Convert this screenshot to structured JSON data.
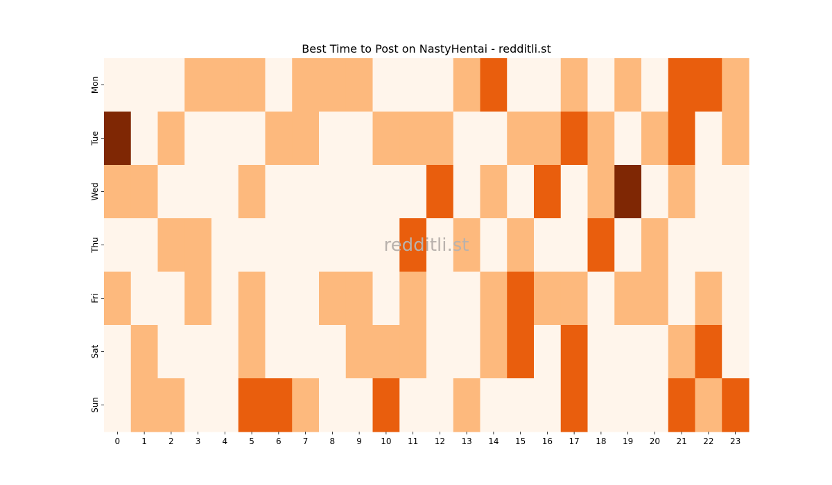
{
  "chart_data": {
    "type": "heatmap",
    "title": "Best Time to Post on NastyHentai - redditli.st",
    "watermark": "redditli.st",
    "x_categories": [
      "0",
      "1",
      "2",
      "3",
      "4",
      "5",
      "6",
      "7",
      "8",
      "9",
      "10",
      "11",
      "12",
      "13",
      "14",
      "15",
      "16",
      "17",
      "18",
      "19",
      "20",
      "21",
      "22",
      "23"
    ],
    "y_categories": [
      "Mon",
      "Tue",
      "Wed",
      "Thu",
      "Fri",
      "Sat",
      "Sun"
    ],
    "values": [
      [
        0,
        0,
        0,
        1,
        1,
        1,
        0,
        1,
        1,
        1,
        0,
        0,
        0,
        1,
        2,
        0,
        0,
        1,
        0,
        1,
        0,
        2,
        2,
        1
      ],
      [
        3,
        0,
        1,
        0,
        0,
        0,
        1,
        1,
        0,
        0,
        1,
        1,
        1,
        0,
        0,
        1,
        1,
        2,
        1,
        0,
        1,
        2,
        0,
        1
      ],
      [
        1,
        1,
        0,
        0,
        0,
        1,
        0,
        0,
        0,
        0,
        0,
        0,
        2,
        0,
        1,
        0,
        2,
        0,
        1,
        3,
        0,
        1,
        0,
        0
      ],
      [
        0,
        0,
        1,
        1,
        0,
        0,
        0,
        0,
        0,
        0,
        0,
        2,
        0,
        1,
        0,
        1,
        0,
        0,
        2,
        0,
        1,
        0,
        0,
        0
      ],
      [
        1,
        0,
        0,
        1,
        0,
        1,
        0,
        0,
        1,
        1,
        0,
        1,
        0,
        0,
        1,
        2,
        1,
        1,
        0,
        1,
        1,
        0,
        1,
        0
      ],
      [
        0,
        1,
        0,
        0,
        0,
        1,
        0,
        0,
        0,
        1,
        1,
        1,
        0,
        0,
        1,
        2,
        0,
        2,
        0,
        0,
        0,
        1,
        2,
        0
      ],
      [
        0,
        1,
        1,
        0,
        0,
        2,
        2,
        1,
        0,
        0,
        2,
        0,
        0,
        1,
        0,
        0,
        0,
        2,
        0,
        0,
        0,
        2,
        1,
        2
      ]
    ],
    "colors": [
      "#fff5eb",
      "#fdb97d",
      "#e95e0d",
      "#7f2704"
    ],
    "colormap": "Oranges",
    "grid": false,
    "legend": "none"
  }
}
